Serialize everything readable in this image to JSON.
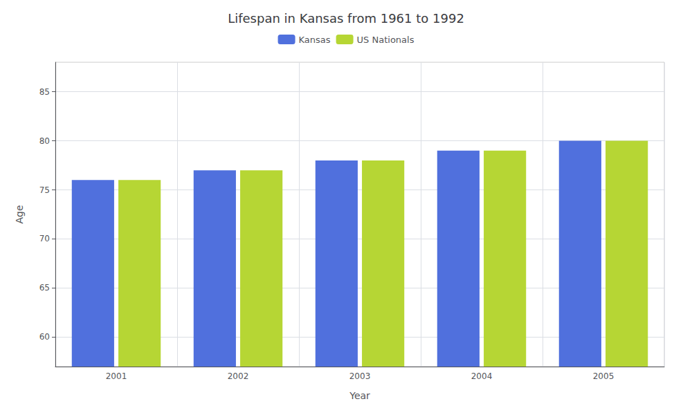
{
  "chart_data": {
    "type": "bar",
    "title": "Lifespan in Kansas from 1961 to 1992",
    "x_label": "Year",
    "y_label": "Age",
    "categories": [
      "2001",
      "2002",
      "2003",
      "2004",
      "2005"
    ],
    "series": [
      {
        "name": "Kansas",
        "values": [
          76,
          77,
          78,
          79,
          80
        ]
      },
      {
        "name": "US Nationals",
        "values": [
          76,
          77,
          78,
          79,
          80
        ]
      }
    ],
    "ylim": [
      57,
      88
    ],
    "yticks": [
      60,
      65,
      70,
      75,
      80,
      85
    ],
    "grid": true,
    "legend": "top"
  }
}
